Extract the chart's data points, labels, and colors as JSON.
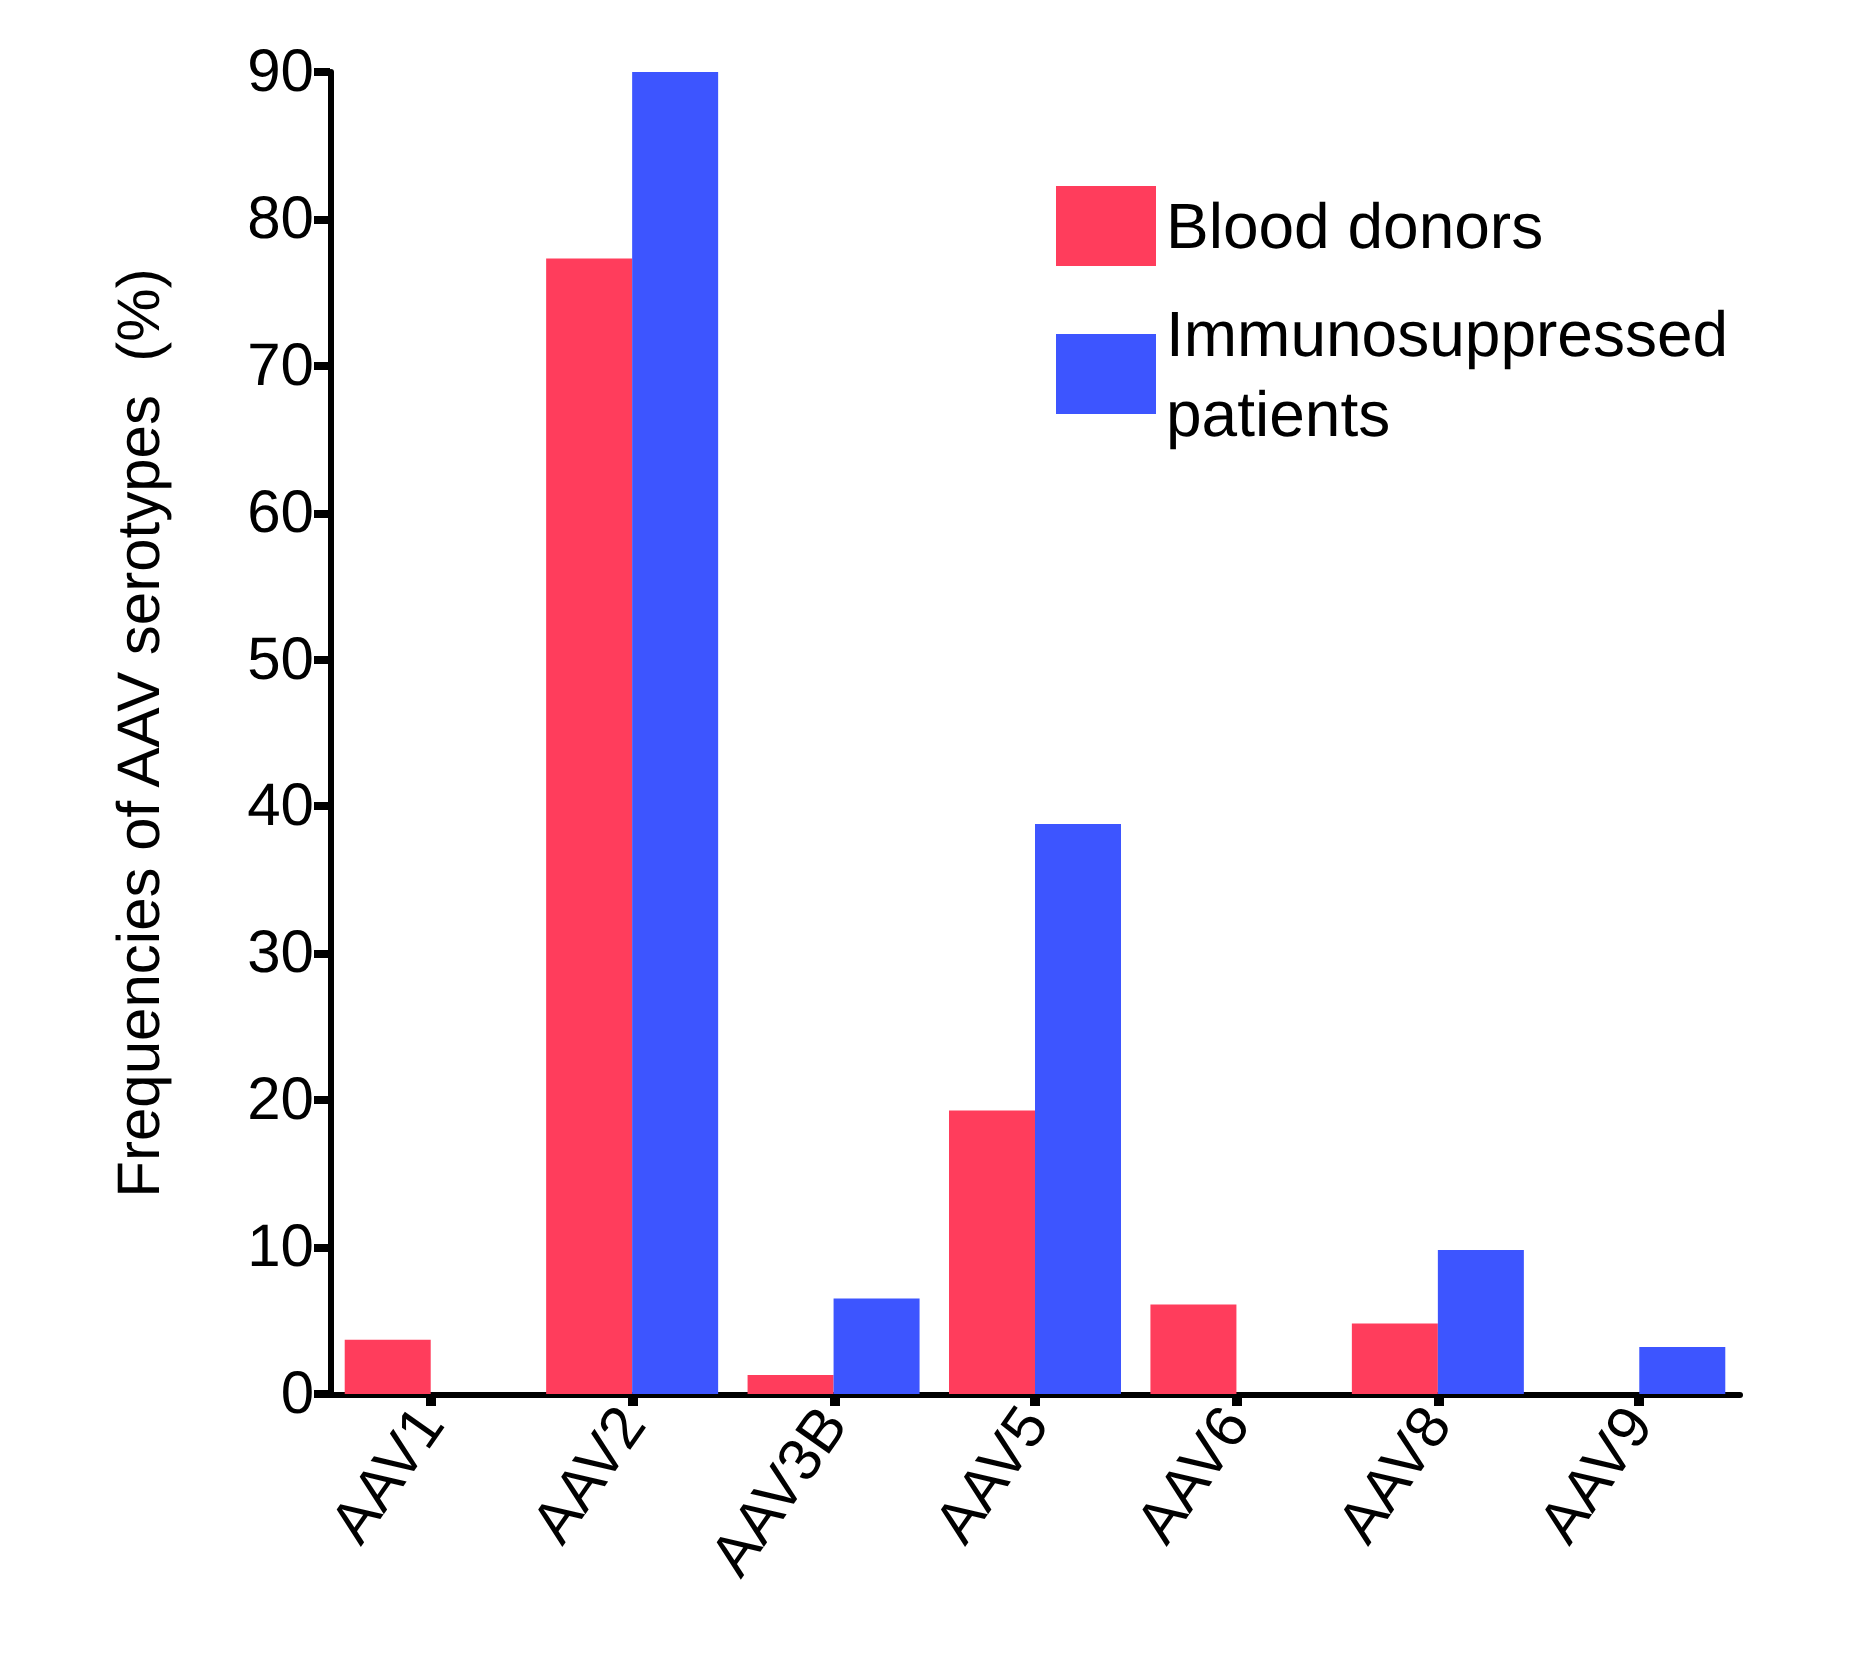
{
  "chart_data": {
    "type": "bar",
    "ylabel": "Frequencies of AAV serotypes  (%)",
    "categories": [
      "AAV1",
      "AAV2",
      "AAV3B",
      "AAV5",
      "AAV6",
      "AAV8",
      "AAV9"
    ],
    "series": [
      {
        "name": "Blood donors",
        "color": "#ff3d5c",
        "values": [
          3.7,
          77.3,
          1.3,
          19.3,
          6.1,
          4.8,
          0
        ]
      },
      {
        "name": "Immunosuppressed patients",
        "color": "#3d55ff",
        "values": [
          0,
          90,
          6.5,
          38.8,
          0,
          9.8,
          3.2
        ]
      }
    ],
    "ylim": [
      0,
      90
    ],
    "yticks": [
      0,
      10,
      20,
      30,
      40,
      50,
      60,
      70,
      80,
      90
    ],
    "grid": false,
    "legend": "top right"
  }
}
